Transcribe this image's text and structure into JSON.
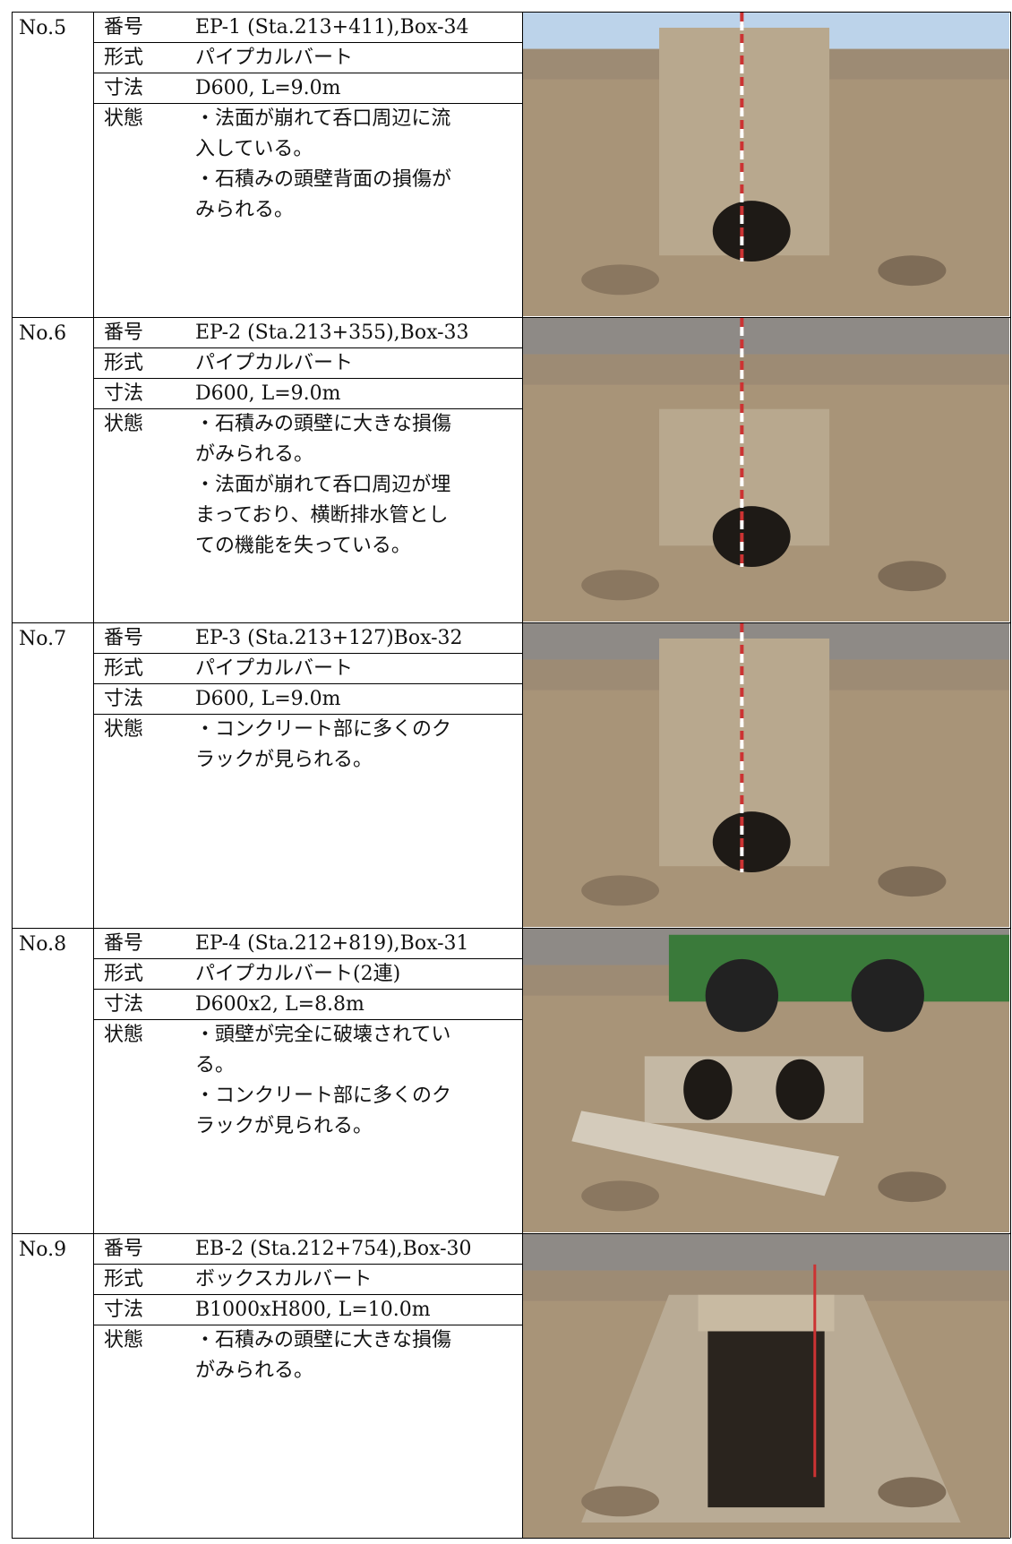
{
  "rows": [
    {
      "no": "No.5",
      "fields": [
        {
          "label": "番号",
          "value": "EP-1 (Sta.213+411),Box-34"
        },
        {
          "label": "形式",
          "value": "パイプカルバート"
        },
        {
          "label": "寸法",
          "value": "D600, L=9.0m"
        },
        {
          "label": "状態",
          "lines": [
            "・法面が崩れて呑口周辺に流",
            "入している。",
            "・石積みの頭壁背面の損傷が",
            "みられる。"
          ]
        }
      ]
    },
    {
      "no": "No.6",
      "fields": [
        {
          "label": "番号",
          "value": "EP-2 (Sta.213+355),Box-33"
        },
        {
          "label": "形式",
          "value": "パイプカルバート"
        },
        {
          "label": "寸法",
          "value": "D600, L=9.0m"
        },
        {
          "label": "状態",
          "lines": [
            "・石積みの頭壁に大きな損傷",
            "がみられる。",
            "・法面が崩れて呑口周辺が埋",
            "まっており、横断排水管とし",
            "ての機能を失っている。"
          ]
        }
      ]
    },
    {
      "no": "No.7",
      "fields": [
        {
          "label": "番号",
          "value": "EP-3 (Sta.213+127)Box-32"
        },
        {
          "label": "形式",
          "value": "パイプカルバート"
        },
        {
          "label": "寸法",
          "value": "D600, L=9.0m"
        },
        {
          "label": "状態",
          "lines": [
            "・コンクリート部に多くのク",
            "ラックが見られる。"
          ]
        }
      ]
    },
    {
      "no": "No.8",
      "fields": [
        {
          "label": "番号",
          "value": "EP-4 (Sta.212+819),Box-31"
        },
        {
          "label": "形式",
          "value": "パイプカルバート(2連)"
        },
        {
          "label": "寸法",
          "value": "D600x2, L=8.8m"
        },
        {
          "label": "状態",
          "lines": [
            "・頭壁が完全に破壊されてい",
            "る。",
            "・コンクリート部に多くのク",
            "ラックが見られる。"
          ]
        }
      ]
    },
    {
      "no": "No.9",
      "fields": [
        {
          "label": "番号",
          "value": "EB-2 (Sta.212+754),Box-30"
        },
        {
          "label": "形式",
          "value": "ボックスカルバート"
        },
        {
          "label": "寸法",
          "value": "B1000xH800, L=10.0m"
        },
        {
          "label": "状態",
          "lines": [
            "・石積みの頭壁に大きな損傷",
            "がみられる。"
          ]
        }
      ]
    }
  ]
}
